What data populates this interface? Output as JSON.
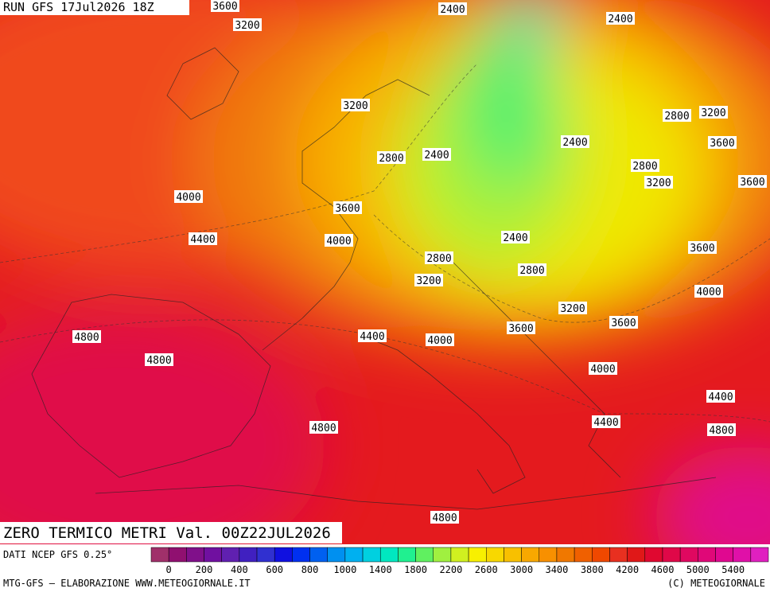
{
  "header": {
    "run": "RUN GFS 17Jul2026 18Z"
  },
  "map": {
    "contour_labels": [
      "3600",
      "3200",
      "2400",
      "2400",
      "3200",
      "2800",
      "3200",
      "2800",
      "2400",
      "2400",
      "3600",
      "2800",
      "3200",
      "3600",
      "4000",
      "3600",
      "4400",
      "4000",
      "2400",
      "2800",
      "3600",
      "2800",
      "3200",
      "4000",
      "3200",
      "3600",
      "3600",
      "4800",
      "4400",
      "4000",
      "4800",
      "4000",
      "4400",
      "4800",
      "4400",
      "4800",
      "4800"
    ]
  },
  "title": "ZERO TERMICO METRI Val. 00Z22JUL2026",
  "legend": {
    "source": "DATI NCEP GFS 0.25°",
    "colors": [
      "#a0306a",
      "#901070",
      "#80108a",
      "#7010a0",
      "#6020b0",
      "#4020c0",
      "#3030d0",
      "#1010e0",
      "#0030f0",
      "#0060f0",
      "#0090f0",
      "#00b0f0",
      "#00d0e0",
      "#00e8c0",
      "#20f090",
      "#60f060",
      "#a0f040",
      "#d0f020",
      "#f8f000",
      "#f8d800",
      "#f8c000",
      "#f8a800",
      "#f89000",
      "#f07800",
      "#f06000",
      "#f04800",
      "#e83020",
      "#e01818",
      "#e00830",
      "#e00848",
      "#e00860",
      "#e00878",
      "#e00890",
      "#e010a8",
      "#e020c0"
    ],
    "ticks": [
      "0",
      "200",
      "400",
      "600",
      "800",
      "1000",
      "1400",
      "1800",
      "2200",
      "2600",
      "3000",
      "3400",
      "3800",
      "4200",
      "4600",
      "5000",
      "5400"
    ]
  },
  "footer": {
    "credit": "MTG-GFS — ELABORAZIONE WWW.METEOGIORNALE.IT",
    "copyright": "(C) METEOGIORNALE"
  }
}
